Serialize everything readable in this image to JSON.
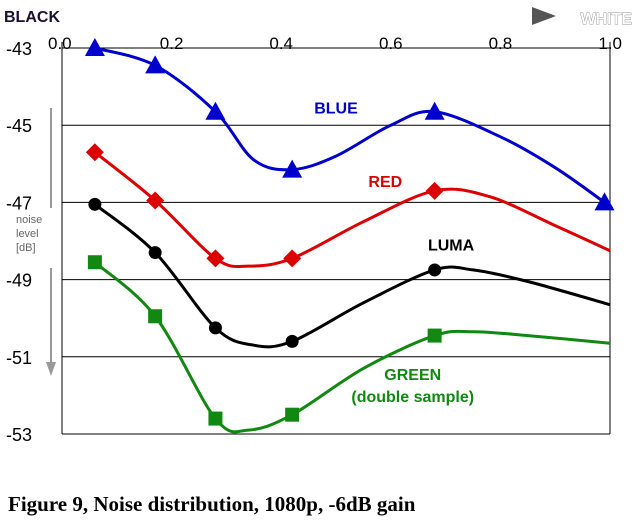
{
  "chart_data": {
    "type": "line",
    "title": "",
    "caption": "Figure 9, Noise distribution, 1080p, -6dB gain",
    "x_arrow": {
      "left_label": "BLACK",
      "right_label": "WHITE"
    },
    "ylabel": [
      "noise",
      "level",
      "[dB]"
    ],
    "xlim": [
      0,
      1
    ],
    "ylim": [
      -53,
      -43
    ],
    "xticks": [
      "0.0",
      "0.2",
      "0.4",
      "0.6",
      "0.8",
      "1.0"
    ],
    "yticks": [
      "-43",
      "-45",
      "-47",
      "-49",
      "-51",
      "-53"
    ],
    "grid": "horizontal",
    "series": [
      {
        "name": "BLUE",
        "color": "#0000cc",
        "marker": "triangle",
        "points": [
          [
            0.06,
            -43.0
          ],
          [
            0.17,
            -43.45
          ],
          [
            0.28,
            -44.65
          ],
          [
            0.42,
            -46.15
          ],
          [
            0.68,
            -44.65
          ],
          [
            0.99,
            -47.0
          ]
        ],
        "curve": [
          [
            0.06,
            -43.0
          ],
          [
            0.17,
            -43.45
          ],
          [
            0.28,
            -44.65
          ],
          [
            0.35,
            -45.9
          ],
          [
            0.42,
            -46.15
          ],
          [
            0.5,
            -45.8
          ],
          [
            0.6,
            -45.0
          ],
          [
            0.68,
            -44.65
          ],
          [
            0.8,
            -45.3
          ],
          [
            0.9,
            -46.1
          ],
          [
            0.99,
            -47.0
          ]
        ],
        "label_pos": [
          0.5,
          -44.7
        ]
      },
      {
        "name": "RED",
        "color": "#dd0000",
        "marker": "diamond",
        "points": [
          [
            0.06,
            -45.7
          ],
          [
            0.17,
            -46.95
          ],
          [
            0.28,
            -48.45
          ],
          [
            0.42,
            -48.45
          ],
          [
            0.68,
            -46.7
          ]
        ],
        "curve": [
          [
            0.06,
            -45.7
          ],
          [
            0.17,
            -46.95
          ],
          [
            0.28,
            -48.45
          ],
          [
            0.34,
            -48.65
          ],
          [
            0.42,
            -48.45
          ],
          [
            0.55,
            -47.5
          ],
          [
            0.68,
            -46.7
          ],
          [
            0.78,
            -46.85
          ],
          [
            0.9,
            -47.6
          ],
          [
            1.0,
            -48.25
          ]
        ],
        "label_pos": [
          0.59,
          -46.6
        ]
      },
      {
        "name": "LUMA",
        "color": "#000000",
        "marker": "circle",
        "points": [
          [
            0.06,
            -47.05
          ],
          [
            0.17,
            -48.3
          ],
          [
            0.28,
            -50.25
          ],
          [
            0.42,
            -50.6
          ],
          [
            0.68,
            -48.75
          ]
        ],
        "curve": [
          [
            0.06,
            -47.05
          ],
          [
            0.17,
            -48.3
          ],
          [
            0.28,
            -50.25
          ],
          [
            0.35,
            -50.7
          ],
          [
            0.42,
            -50.6
          ],
          [
            0.55,
            -49.6
          ],
          [
            0.68,
            -48.75
          ],
          [
            0.75,
            -48.75
          ],
          [
            0.85,
            -49.05
          ],
          [
            1.0,
            -49.65
          ]
        ],
        "label_pos": [
          0.71,
          -48.25
        ]
      },
      {
        "name": "GREEN",
        "sublabel": "(double sample)",
        "color": "#118811",
        "marker": "square",
        "points": [
          [
            0.06,
            -48.55
          ],
          [
            0.17,
            -49.95
          ],
          [
            0.28,
            -52.6
          ],
          [
            0.42,
            -52.5
          ],
          [
            0.68,
            -50.45
          ]
        ],
        "curve": [
          [
            0.06,
            -48.55
          ],
          [
            0.17,
            -49.95
          ],
          [
            0.28,
            -52.6
          ],
          [
            0.34,
            -52.9
          ],
          [
            0.42,
            -52.5
          ],
          [
            0.55,
            -51.3
          ],
          [
            0.68,
            -50.45
          ],
          [
            0.75,
            -50.35
          ],
          [
            0.85,
            -50.45
          ],
          [
            1.0,
            -50.65
          ]
        ],
        "label_pos": [
          0.64,
          -51.6
        ]
      }
    ]
  }
}
